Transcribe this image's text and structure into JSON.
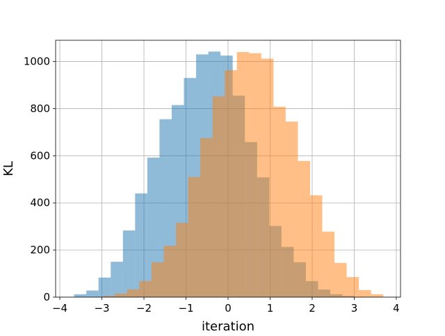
{
  "chart_data": {
    "type": "bar",
    "xlabel": "iteration",
    "ylabel": "KL",
    "xlim": [
      -4.1,
      4.1
    ],
    "ylim": [
      0,
      1090
    ],
    "xticks": [
      -4,
      -3,
      -2,
      -1,
      0,
      1,
      2,
      3,
      4
    ],
    "yticks": [
      0,
      200,
      400,
      600,
      800,
      1000
    ],
    "xtick_labels": [
      "−4",
      "−3",
      "−2",
      "−1",
      "0",
      "1",
      "2",
      "3",
      "4"
    ],
    "ytick_labels": [
      "0",
      "200",
      "400",
      "600",
      "800",
      "1000"
    ],
    "grid": true,
    "legend": false,
    "series": [
      {
        "color": "#1f77b4",
        "opacity": 0.5,
        "bins": [
          {
            "x0": -3.66,
            "x1": -3.37,
            "value": 12
          },
          {
            "x0": -3.37,
            "x1": -3.08,
            "value": 28
          },
          {
            "x0": -3.08,
            "x1": -2.79,
            "value": 83
          },
          {
            "x0": -2.79,
            "x1": -2.5,
            "value": 150
          },
          {
            "x0": -2.5,
            "x1": -2.21,
            "value": 283
          },
          {
            "x0": -2.21,
            "x1": -1.92,
            "value": 440
          },
          {
            "x0": -1.92,
            "x1": -1.63,
            "value": 592
          },
          {
            "x0": -1.63,
            "x1": -1.34,
            "value": 755
          },
          {
            "x0": -1.34,
            "x1": -1.05,
            "value": 815
          },
          {
            "x0": -1.05,
            "x1": -0.76,
            "value": 930
          },
          {
            "x0": -0.76,
            "x1": -0.47,
            "value": 1030
          },
          {
            "x0": -0.47,
            "x1": -0.18,
            "value": 1042
          },
          {
            "x0": -0.18,
            "x1": 0.11,
            "value": 1025
          },
          {
            "x0": 0.11,
            "x1": 0.4,
            "value": 855
          },
          {
            "x0": 0.4,
            "x1": 0.69,
            "value": 658
          },
          {
            "x0": 0.69,
            "x1": 0.98,
            "value": 508
          },
          {
            "x0": 0.98,
            "x1": 1.27,
            "value": 302
          },
          {
            "x0": 1.27,
            "x1": 1.56,
            "value": 213
          },
          {
            "x0": 1.56,
            "x1": 1.85,
            "value": 148
          },
          {
            "x0": 1.85,
            "x1": 2.14,
            "value": 68
          },
          {
            "x0": 2.14,
            "x1": 2.43,
            "value": 32
          },
          {
            "x0": 2.43,
            "x1": 2.72,
            "value": 12
          },
          {
            "x0": 2.72,
            "x1": 3.01,
            "value": 5
          }
        ]
      },
      {
        "color": "#ff7f0e",
        "opacity": 0.5,
        "bins": [
          {
            "x0": -2.98,
            "x1": -2.69,
            "value": 5
          },
          {
            "x0": -2.69,
            "x1": -2.4,
            "value": 15
          },
          {
            "x0": -2.4,
            "x1": -2.11,
            "value": 33
          },
          {
            "x0": -2.11,
            "x1": -1.82,
            "value": 68
          },
          {
            "x0": -1.82,
            "x1": -1.53,
            "value": 148
          },
          {
            "x0": -1.53,
            "x1": -1.24,
            "value": 218
          },
          {
            "x0": -1.24,
            "x1": -0.95,
            "value": 315
          },
          {
            "x0": -0.95,
            "x1": -0.66,
            "value": 510
          },
          {
            "x0": -0.66,
            "x1": -0.37,
            "value": 675
          },
          {
            "x0": -0.37,
            "x1": -0.08,
            "value": 852
          },
          {
            "x0": -0.08,
            "x1": 0.21,
            "value": 963
          },
          {
            "x0": 0.21,
            "x1": 0.5,
            "value": 1040
          },
          {
            "x0": 0.5,
            "x1": 0.79,
            "value": 1035
          },
          {
            "x0": 0.79,
            "x1": 1.08,
            "value": 1012
          },
          {
            "x0": 1.08,
            "x1": 1.37,
            "value": 808
          },
          {
            "x0": 1.37,
            "x1": 1.66,
            "value": 745
          },
          {
            "x0": 1.66,
            "x1": 1.95,
            "value": 578
          },
          {
            "x0": 1.95,
            "x1": 2.24,
            "value": 432
          },
          {
            "x0": 2.24,
            "x1": 2.53,
            "value": 278
          },
          {
            "x0": 2.53,
            "x1": 2.82,
            "value": 145
          },
          {
            "x0": 2.82,
            "x1": 3.11,
            "value": 85
          },
          {
            "x0": 3.11,
            "x1": 3.4,
            "value": 30
          },
          {
            "x0": 3.4,
            "x1": 3.69,
            "value": 12
          }
        ]
      }
    ]
  }
}
